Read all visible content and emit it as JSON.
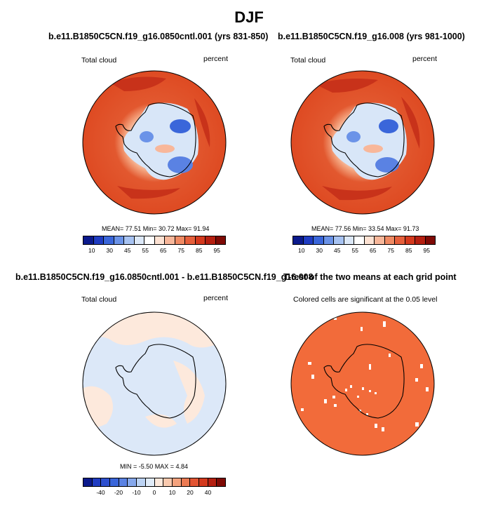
{
  "figure": {
    "title": "DJF"
  },
  "panels": [
    {
      "title": "b.e11.B1850C5CN.f19_g16.0850cntl.001 (yrs 831-850)",
      "left_label": "Total cloud",
      "right_label": "percent",
      "stats": "MEAN= 77.51  Min= 30.72  Max= 91.94"
    },
    {
      "title": "b.e11.B1850C5CN.f19_g16.008 (yrs 981-1000)",
      "left_label": "Total cloud",
      "right_label": "percent",
      "stats": "MEAN= 77.56  Min= 33.54  Max= 91.73"
    },
    {
      "title": "b.e11.B1850C5CN.f19_g16.0850cntl.001 - b.e11.B1850C5CN.f19_g16.008",
      "left_label": "Total cloud",
      "right_label": "percent",
      "stats": "MIN =  -5.50 MAX =  4.84"
    },
    {
      "title": "T-test of the two means at each grid point",
      "subtitle": "Colored cells are significant at the 0.05 level"
    }
  ],
  "colorbars": {
    "absolute": {
      "ticks": [
        "10",
        "30",
        "45",
        "55",
        "65",
        "75",
        "85",
        "95"
      ],
      "colors": [
        "#0b1a8c",
        "#1f3cc2",
        "#3a66da",
        "#6b93e8",
        "#a7c3f2",
        "#dce8f8",
        "#ffffff",
        "#fde2d3",
        "#f8b79a",
        "#f08a63",
        "#e65f3b",
        "#d4391d",
        "#b51f10",
        "#7f0a05"
      ]
    },
    "difference": {
      "ticks": [
        "-40",
        "-20",
        "-10",
        "0",
        "10",
        "20",
        "40"
      ],
      "colors": [
        "#0b1a8c",
        "#1f3cc2",
        "#2e50cf",
        "#3a66da",
        "#5a82e3",
        "#86a8ec",
        "#bcd3f4",
        "#e1ecf9",
        "#fde9dc",
        "#f9c9ae",
        "#f4a27d",
        "#ec7a52",
        "#e35533",
        "#d4391d",
        "#b51f10",
        "#7f0a05"
      ]
    }
  },
  "chart_data": [
    {
      "type": "heatmap",
      "title": "b.e11.B1850C5CN.f19_g16.0850cntl.001 (yrs 831-850)",
      "field": "Total cloud",
      "units": "percent",
      "projection": "south polar stereographic",
      "mean": 77.51,
      "min": 30.72,
      "max": 91.94,
      "levels": [
        10,
        30,
        45,
        55,
        65,
        75,
        85,
        95
      ]
    },
    {
      "type": "heatmap",
      "title": "b.e11.B1850C5CN.f19_g16.008 (yrs 981-1000)",
      "field": "Total cloud",
      "units": "percent",
      "projection": "south polar stereographic",
      "mean": 77.56,
      "min": 33.54,
      "max": 91.73,
      "levels": [
        10,
        30,
        45,
        55,
        65,
        75,
        85,
        95
      ]
    },
    {
      "type": "heatmap",
      "title": "b.e11.B1850C5CN.f19_g16.0850cntl.001 - b.e11.B1850C5CN.f19_g16.008",
      "field": "Total cloud",
      "units": "percent",
      "projection": "south polar stereographic",
      "min": -5.5,
      "max": 4.84,
      "levels": [
        -40,
        -20,
        -10,
        0,
        10,
        20,
        40
      ]
    },
    {
      "type": "heatmap",
      "title": "T-test of the two means at each grid point",
      "note": "Colored cells are significant at the 0.05 level",
      "significance_level": 0.05
    }
  ]
}
